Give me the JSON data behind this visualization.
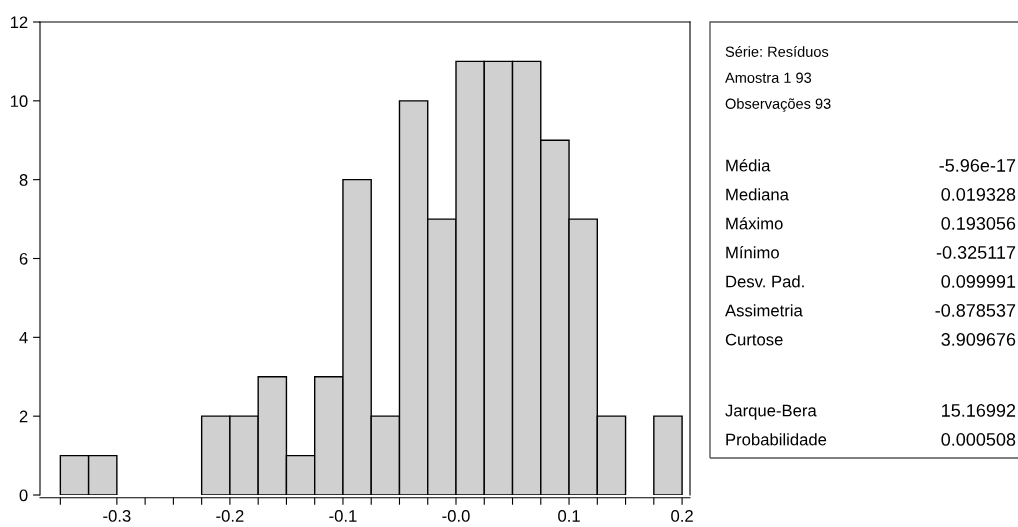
{
  "chart_data": {
    "type": "histogram",
    "color": "#d0d0d0",
    "bins": [
      -0.35,
      -0.325,
      -0.3,
      -0.275,
      -0.25,
      -0.225,
      -0.2,
      -0.175,
      -0.15,
      -0.125,
      -0.1,
      -0.075,
      -0.05,
      -0.025,
      0,
      0.025,
      0.05,
      0.075,
      0.1,
      0.125,
      0.15,
      0.175,
      0.2
    ],
    "values": [
      1,
      1,
      0,
      0,
      0,
      2,
      2,
      3,
      1,
      3,
      8,
      2,
      10,
      7,
      11,
      11,
      11,
      9,
      7,
      2,
      0,
      2
    ],
    "xlim": [
      -0.368,
      0.207
    ],
    "ylim": [
      0,
      12
    ],
    "xticks": [
      {
        "value": -0.35,
        "label": null
      },
      -0.3,
      {
        "value": -0.275,
        "label": null
      },
      {
        "value": -0.25,
        "label": null
      },
      {
        "value": -0.225,
        "label": null
      },
      -0.2,
      {
        "value": -0.175,
        "label": null
      },
      {
        "value": -0.15,
        "label": null
      },
      {
        "value": -0.125,
        "label": null
      },
      -0.1,
      {
        "value": -0.075,
        "label": null
      },
      {
        "value": -0.05,
        "label": null
      },
      {
        "value": -0.025,
        "label": null
      },
      {
        "value": 0,
        "label": "-0.0"
      },
      {
        "value": 0.025,
        "label": null
      },
      {
        "value": 0.05,
        "label": null
      },
      {
        "value": 0.075,
        "label": null
      },
      0.1,
      {
        "value": 0.125,
        "label": null
      },
      {
        "value": 0.15,
        "label": null
      },
      {
        "value": 0.175,
        "label": null
      },
      0.2
    ],
    "yticks": [
      0,
      2,
      4,
      6,
      8,
      10,
      12
    ],
    "grid": false,
    "annotations": [
      "Série: Resíduos",
      "Amostra 1 93",
      "Observações 93",
      "Média",
      "-5.96e-17",
      "Mediana",
      "0.019328",
      "Máximo",
      "0.193056",
      "Mínimo",
      "-0.325117",
      "Desv. Pad.",
      "0.099991",
      "Assimetria",
      "-0.878537",
      "Curtose",
      "3.909676",
      "Jarque-Bera",
      "15.16992",
      "Probabilidade",
      "0.000508"
    ]
  }
}
